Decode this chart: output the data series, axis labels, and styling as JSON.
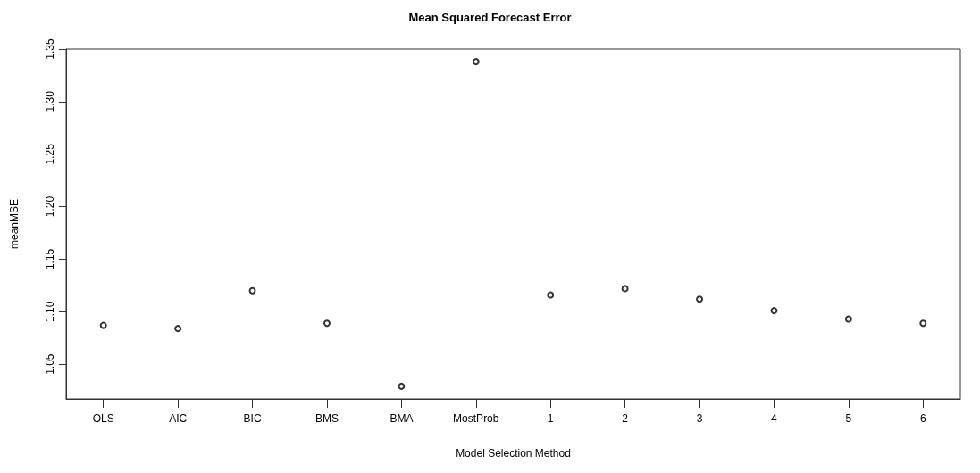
{
  "chart_data": {
    "type": "scatter",
    "title": "Mean Squared Forecast Error",
    "xlabel": "Model Selection Method",
    "ylabel": "meanMSE",
    "categories": [
      "OLS",
      "AIC",
      "BIC",
      "BMS",
      "BMA",
      "MostProb",
      "1",
      "2",
      "3",
      "4",
      "5",
      "6"
    ],
    "values": [
      1.087,
      1.084,
      1.12,
      1.089,
      1.029,
      1.338,
      1.116,
      1.122,
      1.112,
      1.101,
      1.093,
      1.089
    ],
    "color": "#000000",
    "marker": "circle",
    "ylim": [
      1.017,
      1.35
    ],
    "yticks": [
      1.05,
      {
        "value": 1.1,
        "label": "1.10"
      },
      1.15,
      {
        "value": 1.2,
        "label": "1.20"
      },
      1.25,
      {
        "value": 1.3,
        "label": "1.30"
      },
      1.35
    ],
    "grid": false
  }
}
